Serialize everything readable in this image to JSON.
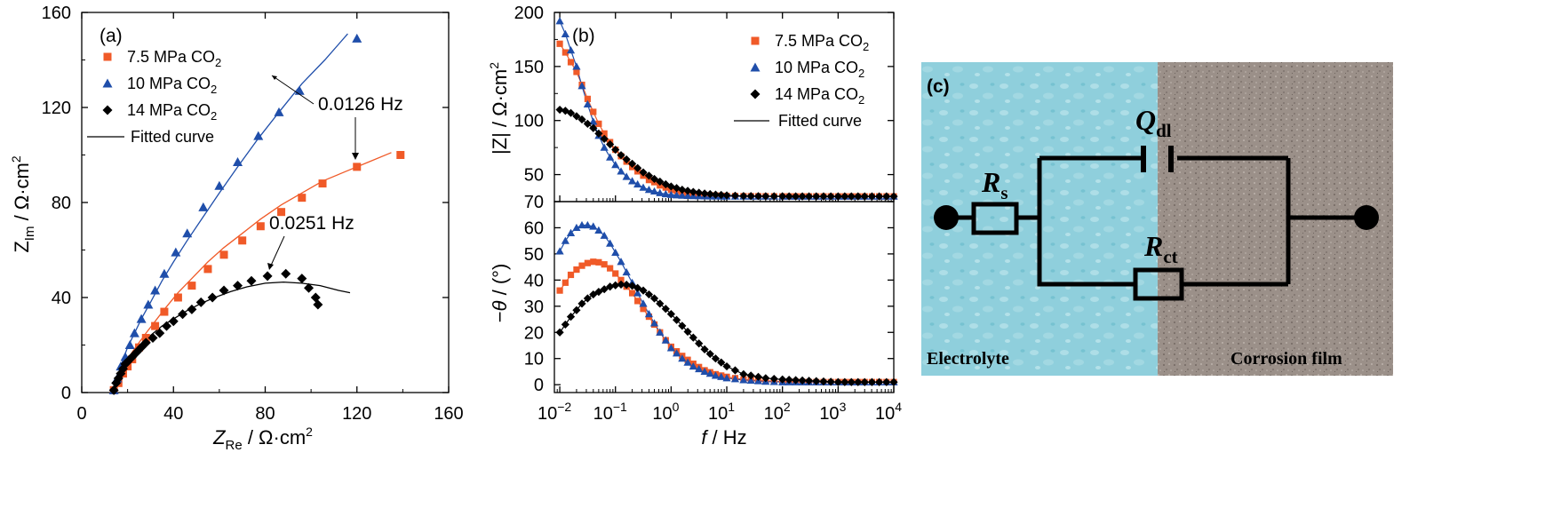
{
  "chart_data": [
    {
      "type": "scatter",
      "panel_label": "(a)",
      "xlabel": "Z_Re / Ω·cm²",
      "ylabel": "Z_Im / Ω·cm²",
      "xlim": [
        0,
        160
      ],
      "ylim": [
        0,
        160
      ],
      "xticks": [
        0,
        40,
        80,
        120,
        160
      ],
      "yticks": [
        0,
        40,
        80,
        120,
        160
      ],
      "legend": {
        "placement": "top-left",
        "entries": [
          "7.5 MPa CO2",
          "10 MPa CO2",
          "14 MPa CO2",
          "Fitted curve"
        ]
      },
      "annotations": [
        "0.0126 Hz",
        "0.0251 Hz"
      ],
      "series": [
        {
          "name": "7.5 MPa CO2",
          "color": "#f05a28",
          "marker": "square",
          "x": [
            14,
            16,
            18,
            20,
            22,
            25,
            28,
            32,
            36,
            42,
            48,
            55,
            62,
            70,
            78,
            87,
            96,
            105,
            120,
            139
          ],
          "y": [
            1,
            4,
            8,
            11,
            14,
            19,
            23,
            28,
            34,
            40,
            45,
            52,
            58,
            64,
            70,
            76,
            82,
            88,
            95,
            100
          ],
          "fit_x": [
            14,
            16,
            18,
            20,
            22,
            25,
            28,
            32,
            36,
            42,
            48,
            55,
            62,
            70,
            78,
            87,
            96,
            105,
            115,
            125,
            135
          ],
          "fit_y": [
            0,
            6,
            10.5,
            14,
            17,
            21,
            25,
            30,
            35,
            42,
            48,
            55,
            61,
            67,
            73,
            79,
            84,
            89,
            93,
            97,
            101
          ]
        },
        {
          "name": "10 MPa CO2",
          "color": "#1f4eaa",
          "marker": "triangle",
          "x": [
            14,
            15.5,
            17,
            19,
            21,
            23,
            26,
            29,
            32,
            36,
            41,
            46,
            53,
            60,
            68,
            77,
            86,
            95,
            120
          ],
          "y": [
            1,
            6,
            11,
            15,
            20,
            25,
            31,
            37,
            43,
            50,
            59,
            67,
            78,
            87,
            97,
            108,
            118,
            127,
            149
          ],
          "fit_x": [
            14,
            16,
            18,
            20,
            23,
            26,
            30,
            35,
            40,
            46,
            53,
            60,
            68,
            77,
            86,
            96,
            106,
            116
          ],
          "fit_y": [
            0,
            8,
            14,
            19,
            25,
            31,
            38,
            47,
            55,
            64,
            74,
            84,
            95,
            107,
            118,
            130,
            140,
            151
          ]
        },
        {
          "name": "14 MPa CO2",
          "color": "#000000",
          "marker": "diamond",
          "x": [
            14,
            15,
            16,
            17,
            18,
            19,
            20,
            22,
            24,
            26,
            28,
            31,
            34,
            37,
            40,
            44,
            48,
            52,
            57,
            62,
            68,
            74,
            81,
            89,
            96,
            99,
            102,
            103
          ],
          "y": [
            1,
            4,
            6,
            8,
            10,
            12,
            13,
            15,
            17,
            19,
            21,
            23,
            25,
            28,
            30,
            33,
            35,
            38,
            40,
            43,
            45,
            47,
            49,
            50,
            48,
            44,
            40,
            37
          ],
          "fit_x": [
            14,
            16,
            18,
            20,
            23,
            26,
            30,
            35,
            40,
            46,
            52,
            58,
            65,
            72,
            80,
            88,
            96,
            104,
            112,
            117
          ],
          "fit_y": [
            0,
            7,
            11,
            14,
            17.5,
            20.5,
            24,
            28,
            31,
            34.5,
            37.5,
            40,
            42.5,
            44.5,
            46,
            46.5,
            46,
            45,
            43,
            42
          ]
        }
      ]
    },
    {
      "type": "line",
      "panel_label": "(b)",
      "xlabel": "f / Hz",
      "x_scale": "log",
      "xlim": [
        0.008,
        10000
      ],
      "xtick_labels": [
        "10-2",
        "10-1",
        "100",
        "101",
        "102",
        "103",
        "104"
      ],
      "xtick_values": [
        0.01,
        0.1,
        1,
        10,
        100,
        1000,
        10000
      ],
      "legend": {
        "placement": "top-right",
        "entries": [
          "7.5 MPa CO2",
          "10 MPa CO2",
          "14 MPa CO2",
          "Fitted curve"
        ]
      },
      "top": {
        "ylabel": "|Z| / Ω·cm²",
        "ylim": [
          25,
          200
        ],
        "yticks": [
          50,
          100,
          150,
          200
        ],
        "ytick_labels": [
          "50",
          "100",
          "150",
          "200"
        ],
        "series": [
          {
            "name": "7.5 MPa CO2",
            "color": "#f05a28",
            "marker": "square",
            "x": [
              0.01,
              0.0126,
              0.0158,
              0.02,
              0.025,
              0.0316,
              0.04,
              0.05,
              0.063,
              0.08,
              0.1,
              0.126,
              0.158,
              0.2,
              0.25,
              0.316,
              0.4,
              0.5,
              0.63,
              0.8,
              1,
              1.58,
              2.5,
              4,
              6.3,
              10,
              20,
              50,
              100,
              300,
              1000,
              3000,
              10000
            ],
            "y": [
              171,
              163,
              154,
              145,
              133,
              120,
              108,
              97,
              88,
              80,
              73,
              67,
              62,
              57,
              53,
              49,
              45,
              43,
              40,
              38,
              36,
              34,
              32,
              31,
              30.6,
              30.2,
              30,
              29.9,
              29.8,
              29.8,
              29.8,
              29.8,
              29.8
            ]
          },
          {
            "name": "10 MPa CO2",
            "color": "#1f4eaa",
            "marker": "triangle",
            "x": [
              0.01,
              0.0126,
              0.0158,
              0.02,
              0.025,
              0.0316,
              0.04,
              0.05,
              0.063,
              0.08,
              0.1,
              0.126,
              0.158,
              0.2,
              0.25,
              0.316,
              0.4,
              0.5,
              0.63,
              0.8,
              1,
              1.58,
              2.5,
              4,
              6.3,
              10,
              20,
              50,
              100,
              300,
              1000,
              3000,
              10000
            ],
            "y": [
              192,
              180,
              165,
              150,
              132,
              115,
              99,
              86,
              75,
              66,
              59,
              53,
              48,
              44,
              41,
              38,
              36,
              34.5,
              33,
              32,
              31.3,
              30.6,
              30.2,
              30,
              29.9,
              29.8,
              29.8,
              29.8,
              29.8,
              29.8,
              29.8,
              29.8,
              29.8
            ]
          },
          {
            "name": "14 MPa CO2",
            "color": "#000000",
            "marker": "diamond",
            "x": [
              0.01,
              0.0126,
              0.0158,
              0.02,
              0.025,
              0.0316,
              0.04,
              0.05,
              0.063,
              0.08,
              0.1,
              0.126,
              0.158,
              0.2,
              0.25,
              0.316,
              0.4,
              0.5,
              0.63,
              0.8,
              1,
              1.58,
              2.5,
              4,
              6.3,
              10,
              20,
              50,
              100,
              300,
              1000,
              3000,
              10000
            ],
            "y": [
              110,
              109,
              107,
              104,
              101,
              97,
              93,
              88,
              83,
              78,
              73,
              68,
              64,
              60,
              56,
              52,
              49,
              46,
              43.5,
              41,
              39,
              36,
              34,
              32.5,
              31.5,
              30.8,
              30.2,
              30,
              29.9,
              29.8,
              29.8,
              29.8,
              29.8
            ]
          }
        ]
      },
      "bottom": {
        "ylabel": "−θ / (°)",
        "ylim": [
          -3,
          70
        ],
        "yticks": [
          0,
          10,
          20,
          30,
          40,
          50,
          60,
          70
        ],
        "series": [
          {
            "name": "7.5 MPa CO2",
            "color": "#f05a28",
            "marker": "square",
            "x": [
              0.01,
              0.0126,
              0.0158,
              0.02,
              0.025,
              0.0316,
              0.04,
              0.05,
              0.063,
              0.08,
              0.1,
              0.126,
              0.158,
              0.2,
              0.25,
              0.316,
              0.4,
              0.5,
              0.63,
              0.8,
              1,
              1.58,
              2.5,
              4,
              6.3,
              10,
              20,
              50,
              100,
              300,
              1000,
              3000,
              10000
            ],
            "y": [
              36,
              39,
              42,
              44,
              45.5,
              46.5,
              47,
              46.8,
              46,
              44.5,
              42.5,
              40,
              37.5,
              35,
              32,
              29,
              26,
              23,
              20,
              17,
              14.5,
              11,
              8,
              5.5,
              4,
              3,
              2,
              1.5,
              1.2,
              1,
              1,
              1,
              1
            ]
          },
          {
            "name": "10 MPa CO2",
            "color": "#1f4eaa",
            "marker": "triangle",
            "x": [
              0.01,
              0.0126,
              0.0158,
              0.02,
              0.025,
              0.0316,
              0.04,
              0.05,
              0.063,
              0.08,
              0.1,
              0.126,
              0.158,
              0.2,
              0.25,
              0.316,
              0.4,
              0.5,
              0.63,
              0.8,
              1,
              1.58,
              2.5,
              4,
              6.3,
              10,
              20,
              50,
              100,
              300,
              1000,
              3000,
              10000
            ],
            "y": [
              51,
              55,
              58,
              60,
              61,
              61,
              60.5,
              59,
              57,
              54,
              50.5,
              47,
              43,
              39,
              35,
              31,
              27,
              23.5,
              20,
              17,
              14,
              10,
              7,
              5,
              3.5,
              2.5,
              1.8,
              1.2,
              1,
              1,
              1,
              1,
              1
            ]
          },
          {
            "name": "14 MPa CO2",
            "color": "#000000",
            "marker": "diamond",
            "x": [
              0.01,
              0.0126,
              0.0158,
              0.02,
              0.025,
              0.0316,
              0.04,
              0.05,
              0.063,
              0.08,
              0.1,
              0.126,
              0.158,
              0.2,
              0.25,
              0.316,
              0.4,
              0.5,
              0.63,
              0.8,
              1,
              1.58,
              2.5,
              4,
              6.3,
              10,
              20,
              50,
              100,
              300,
              1000,
              3000,
              10000
            ],
            "y": [
              20,
              23,
              26,
              28.5,
              31,
              33,
              34.5,
              35.5,
              36.5,
              37.5,
              38,
              38.3,
              38.2,
              37.8,
              37,
              36,
              34.5,
              33,
              31,
              29,
              27,
              22.5,
              18,
              13.5,
              10,
              7,
              4,
              2.5,
              2,
              1.5,
              1,
              1,
              1
            ]
          }
        ]
      }
    },
    {
      "type": "diagram",
      "panel_label": "(c)",
      "components": {
        "rs": "R",
        "rs_sub": "s",
        "qdl": "Q",
        "qdl_sub": "dl",
        "rct": "R",
        "rct_sub": "ct"
      },
      "regions": {
        "left": "Electrolyte",
        "right": "Corrosion film"
      },
      "colors": {
        "electrolyte": "#8fcfdc",
        "film": "#9b9089",
        "wire": "#000000"
      }
    }
  ]
}
